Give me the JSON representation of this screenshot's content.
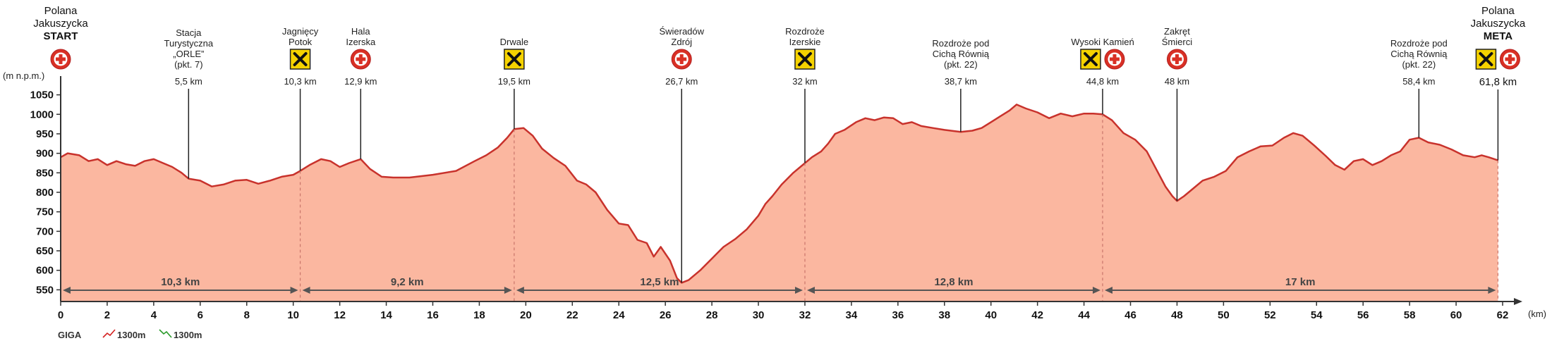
{
  "chart_data": {
    "type": "area",
    "title": "",
    "ylabel": "(m n.p.m.)",
    "xlabel": "(km)",
    "xlim": [
      0,
      62
    ],
    "ylim": [
      520,
      1080
    ],
    "xticks": [
      "0",
      "2",
      "4",
      "6",
      "8",
      "10",
      "12",
      "14",
      "16",
      "18",
      "20",
      "22",
      "24",
      "26",
      "28",
      "30",
      "32",
      "34",
      "36",
      "38",
      "40",
      "42",
      "44",
      "46",
      "48",
      "50",
      "52",
      "54",
      "56",
      "58",
      "60",
      "62"
    ],
    "bold_xticks": [
      "0",
      "10",
      "20",
      "30",
      "40",
      "50",
      "60"
    ],
    "yticks": [
      "550",
      "600",
      "650",
      "700",
      "750",
      "800",
      "850",
      "900",
      "950",
      "1000",
      "1050"
    ],
    "fill_color": "#fbb7a0",
    "line_color": "#c8322c",
    "series": [
      {
        "x": [
          0,
          0.3,
          0.8,
          1.2,
          1.6,
          2.0,
          2.4,
          2.8,
          3.2,
          3.6,
          4.0,
          4.4,
          4.8,
          5.2,
          5.5,
          6.0,
          6.5,
          7.0,
          7.5,
          8.0,
          8.5,
          9.0,
          9.5,
          10.0,
          10.3,
          10.7,
          11.2,
          11.6,
          12.0,
          12.4,
          12.9,
          13.3,
          13.8,
          14.3,
          15.0,
          16.0,
          17.0,
          17.8,
          18.3,
          18.8,
          19.2,
          19.5,
          19.9,
          20.3,
          20.7,
          21.2,
          21.7,
          22.2,
          22.6,
          23.0,
          23.5,
          24.0,
          24.4,
          24.8,
          25.2,
          25.5,
          25.8,
          26.2,
          26.5,
          26.7,
          27.0,
          27.5,
          28.0,
          28.5,
          29.0,
          29.5,
          30.0,
          30.3,
          30.6,
          31.0,
          31.5,
          32.0,
          32.3,
          32.7,
          33.0,
          33.3,
          33.7,
          34.2,
          34.6,
          35.0,
          35.4,
          35.8,
          36.2,
          36.6,
          37.0,
          37.5,
          38.0,
          38.7,
          39.2,
          39.6,
          40.0,
          40.4,
          40.8,
          41.1,
          41.5,
          42.0,
          42.5,
          43.0,
          43.5,
          44.0,
          44.4,
          44.8,
          45.2,
          45.7,
          46.2,
          46.7,
          47.1,
          47.5,
          47.8,
          48.0,
          48.3,
          48.7,
          49.1,
          49.6,
          50.1,
          50.6,
          51.1,
          51.6,
          52.1,
          52.6,
          53.0,
          53.4,
          53.9,
          54.4,
          54.8,
          55.2,
          55.6,
          56.0,
          56.4,
          56.8,
          57.2,
          57.6,
          58.0,
          58.4,
          58.8,
          59.3,
          59.8,
          60.3,
          60.8,
          61.1,
          61.4,
          61.8
        ],
        "y": [
          890,
          900,
          895,
          880,
          885,
          870,
          880,
          872,
          868,
          880,
          885,
          875,
          865,
          850,
          835,
          830,
          815,
          820,
          830,
          832,
          822,
          830,
          840,
          845,
          855,
          870,
          885,
          880,
          865,
          875,
          885,
          860,
          840,
          838,
          838,
          845,
          855,
          880,
          895,
          915,
          940,
          962,
          965,
          945,
          912,
          888,
          868,
          830,
          820,
          800,
          755,
          720,
          716,
          678,
          670,
          635,
          660,
          625,
          580,
          568,
          575,
          600,
          630,
          660,
          680,
          705,
          740,
          770,
          790,
          820,
          850,
          875,
          890,
          905,
          925,
          950,
          960,
          980,
          990,
          985,
          992,
          990,
          975,
          980,
          970,
          965,
          960,
          955,
          958,
          965,
          980,
          995,
          1010,
          1025,
          1015,
          1005,
          990,
          1002,
          995,
          1002,
          1002,
          1000,
          985,
          952,
          935,
          905,
          860,
          815,
          790,
          778,
          790,
          810,
          830,
          840,
          855,
          890,
          905,
          918,
          920,
          940,
          952,
          945,
          920,
          893,
          870,
          858,
          880,
          885,
          870,
          880,
          895,
          905,
          935,
          940,
          928,
          922,
          910,
          895,
          890,
          895,
          890,
          882
        ]
      }
    ],
    "waypoints": [
      {
        "km": 0,
        "label_lines": [
          "Polana",
          "Jakuszycka",
          "START"
        ],
        "bold_last": true,
        "km_text": "",
        "icons": [
          "medical-cross"
        ]
      },
      {
        "km": 5.5,
        "label_lines": [
          "Stacja",
          "Turystyczna",
          "„ORLE”",
          "(pkt. 7)"
        ],
        "bold_last": false,
        "km_text": "5,5 km",
        "icons": []
      },
      {
        "km": 10.3,
        "label_lines": [
          "Jagnięcy",
          "Potok"
        ],
        "bold_last": false,
        "km_text": "10,3 km",
        "icons": [
          "tools"
        ]
      },
      {
        "km": 12.9,
        "label_lines": [
          "Hala",
          "Izerska"
        ],
        "bold_last": false,
        "km_text": "12,9 km",
        "icons": [
          "medical-cross"
        ]
      },
      {
        "km": 19.5,
        "label_lines": [
          "Drwale"
        ],
        "bold_last": false,
        "km_text": "19,5 km",
        "icons": [
          "tools"
        ]
      },
      {
        "km": 26.7,
        "label_lines": [
          "Świeradów",
          "Zdrój"
        ],
        "bold_last": false,
        "km_text": "26,7 km",
        "icons": [
          "medical-cross"
        ]
      },
      {
        "km": 32,
        "label_lines": [
          "Rozdroże",
          "Izerskie"
        ],
        "bold_last": false,
        "km_text": "32 km",
        "icons": [
          "tools"
        ]
      },
      {
        "km": 38.7,
        "label_lines": [
          "Rozdroże pod",
          "Cichą Równią",
          "(pkt. 22)"
        ],
        "bold_last": false,
        "km_text": "38,7 km",
        "icons": []
      },
      {
        "km": 44.8,
        "label_lines": [
          "Wysoki Kamień"
        ],
        "bold_last": false,
        "km_text": "44,8 km",
        "icons": [
          "tools",
          "medical-cross"
        ]
      },
      {
        "km": 48,
        "label_lines": [
          "Zakręt",
          "Śmierci"
        ],
        "bold_last": false,
        "km_text": "48 km",
        "icons": [
          "medical-cross"
        ]
      },
      {
        "km": 58.4,
        "label_lines": [
          "Rozdroże pod",
          "Cichą Równią",
          "(pkt. 22)"
        ],
        "bold_last": false,
        "km_text": "58,4 km",
        "icons": []
      },
      {
        "km": 61.8,
        "label_lines": [
          "Polana",
          "Jakuszycka",
          "META"
        ],
        "bold_last": true,
        "km_text": "61,8 km",
        "icons": [
          "tools",
          "medical-cross"
        ]
      }
    ],
    "segments": [
      {
        "from": 0,
        "to": 10.3,
        "label": "10,3 km"
      },
      {
        "from": 10.3,
        "to": 19.5,
        "label": "9,2 km"
      },
      {
        "from": 19.5,
        "to": 32,
        "label": "12,5 km"
      },
      {
        "from": 32,
        "to": 44.8,
        "label": "12,8 km"
      },
      {
        "from": 44.8,
        "to": 61.8,
        "label": "17 km"
      }
    ],
    "dashed_at": [
      10.3,
      19.5,
      32,
      44.8,
      61.8
    ],
    "legend": {
      "name": "GIGA",
      "ascent": "1300m",
      "descent": "1300m",
      "name_color": "#d42020",
      "ascent_color": "#d42020",
      "descent_color": "#2a9a2a"
    }
  }
}
